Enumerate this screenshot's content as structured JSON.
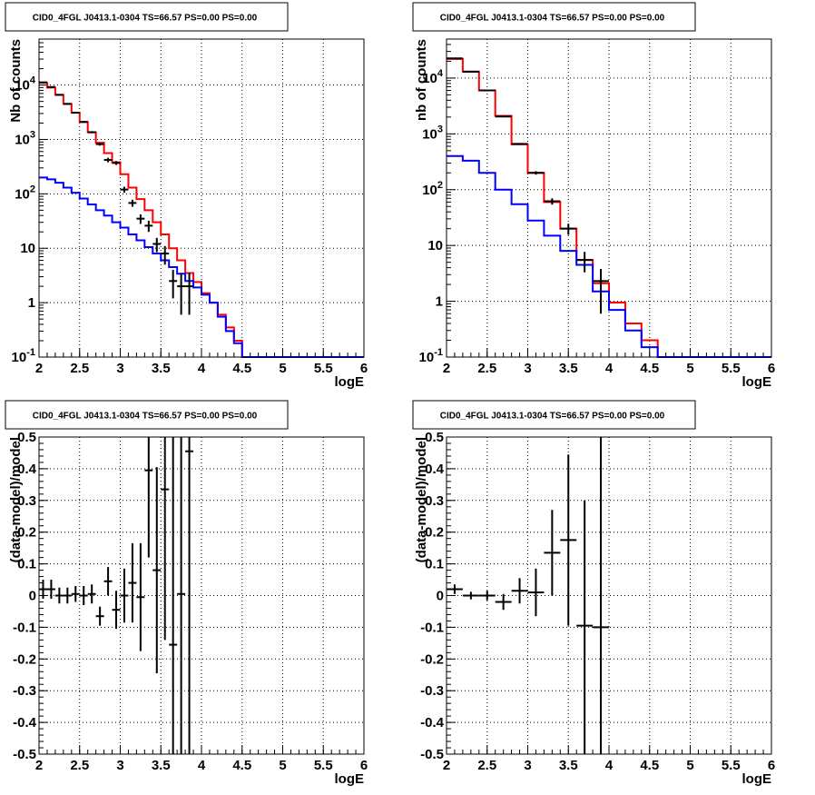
{
  "chart_data": [
    {
      "type": "line",
      "title": "CID0_4FGL J0413.1-0304 TS=66.57 PS=0.00 PS=0.00",
      "xlabel": "logE",
      "ylabel": "Nb of counts",
      "xlim": [
        2,
        6
      ],
      "ylim": [
        0.1,
        70000
      ],
      "yscale": "log",
      "grid": true,
      "xticks": [
        "2",
        "2.5",
        "3",
        "3.5",
        "4",
        "4.5",
        "5",
        "5.5",
        "6"
      ],
      "yticks": [
        {
          "value": 0.1,
          "label": "10^-1"
        },
        {
          "value": 1,
          "label": "1"
        },
        {
          "value": 10,
          "label": "10"
        },
        {
          "value": 100,
          "label": "10^2"
        },
        {
          "value": 1000,
          "label": "10^3"
        },
        {
          "value": 10000,
          "label": "10^4"
        }
      ],
      "bin_edges": [
        2.0,
        2.1,
        2.2,
        2.3,
        2.4,
        2.5,
        2.6,
        2.7,
        2.8,
        2.9,
        3.0,
        3.1,
        3.2,
        3.3,
        3.4,
        3.5,
        3.6,
        3.7,
        3.8,
        3.9,
        4.0,
        4.1,
        4.2,
        4.3,
        4.4,
        4.5,
        4.6,
        4.7,
        4.8,
        4.9,
        5.0,
        5.1,
        5.2,
        5.3,
        5.4,
        5.5,
        5.6,
        5.7,
        5.8,
        5.9,
        6.0
      ],
      "series": [
        {
          "color": "#ff0000",
          "values": [
            11000,
            9000,
            6600,
            4500,
            3100,
            2100,
            1350,
            870,
            560,
            380,
            230,
            130,
            80,
            50,
            30,
            18,
            10,
            6,
            3.5,
            2.4,
            1.5,
            1.0,
            0.6,
            0.35,
            0.2,
            0.1,
            0.1,
            0.1,
            0.1,
            0.1,
            0.1,
            0.1,
            0.1,
            0.1,
            0.1,
            0.1,
            0.1,
            0.1,
            0.1,
            0.1
          ]
        },
        {
          "color": "#0000ff",
          "values": [
            200,
            185,
            160,
            130,
            105,
            82,
            64,
            50,
            40,
            30,
            24,
            18,
            14,
            10.5,
            8,
            6,
            4.5,
            3.4,
            2.5,
            1.9,
            1.4,
            1.0,
            0.55,
            0.3,
            0.18,
            0.1,
            0.1,
            0.1,
            0.1,
            0.1,
            0.1,
            0.1,
            0.1,
            0.1,
            0.1,
            0.1,
            0.1,
            0.1,
            0.1,
            0.1
          ]
        }
      ],
      "points": [
        {
          "x": 2.05,
          "y": 11200,
          "ylo": 11000,
          "yhi": 11400
        },
        {
          "x": 2.15,
          "y": 9200,
          "ylo": 9000,
          "yhi": 9400
        },
        {
          "x": 2.25,
          "y": 6600,
          "ylo": 6450,
          "yhi": 6750
        },
        {
          "x": 2.35,
          "y": 4500,
          "ylo": 4380,
          "yhi": 4620
        },
        {
          "x": 2.45,
          "y": 3100,
          "ylo": 3000,
          "yhi": 3200
        },
        {
          "x": 2.55,
          "y": 2100,
          "ylo": 2020,
          "yhi": 2180
        },
        {
          "x": 2.65,
          "y": 1360,
          "ylo": 1300,
          "yhi": 1420
        },
        {
          "x": 2.75,
          "y": 820,
          "ylo": 770,
          "yhi": 870
        },
        {
          "x": 2.85,
          "y": 420,
          "ylo": 380,
          "yhi": 460
        },
        {
          "x": 2.95,
          "y": 370,
          "ylo": 340,
          "yhi": 400
        },
        {
          "x": 3.05,
          "y": 120,
          "ylo": 105,
          "yhi": 135
        },
        {
          "x": 3.15,
          "y": 68,
          "ylo": 58,
          "yhi": 78
        },
        {
          "x": 3.25,
          "y": 35,
          "ylo": 28,
          "yhi": 42
        },
        {
          "x": 3.35,
          "y": 26,
          "ylo": 20,
          "yhi": 32
        },
        {
          "x": 3.45,
          "y": 12,
          "ylo": 8.5,
          "yhi": 15.5
        },
        {
          "x": 3.55,
          "y": 8,
          "ylo": 5,
          "yhi": 11
        },
        {
          "x": 3.65,
          "y": 2.5,
          "ylo": 1.2,
          "yhi": 4
        },
        {
          "x": 3.75,
          "y": 2,
          "ylo": 0.6,
          "yhi": 3.5
        },
        {
          "x": 3.85,
          "y": 2,
          "ylo": 0.6,
          "yhi": 3.5
        }
      ]
    },
    {
      "type": "line",
      "title": "CID0_4FGL J0413.1-0304 TS=66.57 PS=0.00 PS=0.00",
      "xlabel": "logE",
      "ylabel": "nb of counts",
      "xlim": [
        2,
        6
      ],
      "ylim": [
        0.1,
        50000
      ],
      "yscale": "log",
      "grid": true,
      "xticks": [
        "2",
        "2.5",
        "3",
        "3.5",
        "4",
        "4.5",
        "5",
        "5.5",
        "6"
      ],
      "yticks": [
        {
          "value": 0.1,
          "label": "10^-1"
        },
        {
          "value": 1,
          "label": "1"
        },
        {
          "value": 10,
          "label": "10"
        },
        {
          "value": 100,
          "label": "10^2"
        },
        {
          "value": 1000,
          "label": "10^3"
        },
        {
          "value": 10000,
          "label": "10^4"
        }
      ],
      "bin_edges": [
        2.0,
        2.2,
        2.4,
        2.6,
        2.8,
        3.0,
        3.2,
        3.4,
        3.6,
        3.8,
        4.0,
        4.2,
        4.4,
        4.6,
        4.8,
        5.0,
        5.2,
        5.4,
        5.6,
        5.8,
        6.0
      ],
      "series": [
        {
          "color": "#ff0000",
          "values": [
            22000,
            13000,
            6000,
            2100,
            650,
            200,
            60,
            20,
            5.5,
            2.1,
            0.95,
            0.4,
            0.2,
            0.1,
            0.1,
            0.1,
            0.1,
            0.1,
            0.1,
            0.1
          ]
        },
        {
          "color": "#0000ff",
          "values": [
            400,
            330,
            200,
            100,
            55,
            28,
            15,
            8,
            4.5,
            1.5,
            0.7,
            0.3,
            0.15,
            0.1,
            0.1,
            0.1,
            0.1,
            0.1,
            0.1,
            0.1
          ]
        }
      ],
      "points": [
        {
          "x": 2.1,
          "y": 22500,
          "ylo": 22300,
          "yhi": 22700
        },
        {
          "x": 2.3,
          "y": 13000,
          "ylo": 12850,
          "yhi": 13150
        },
        {
          "x": 2.5,
          "y": 6000,
          "ylo": 5900,
          "yhi": 6100
        },
        {
          "x": 2.7,
          "y": 2050,
          "ylo": 2000,
          "yhi": 2100
        },
        {
          "x": 2.9,
          "y": 660,
          "ylo": 635,
          "yhi": 685
        },
        {
          "x": 3.1,
          "y": 200,
          "ylo": 186,
          "yhi": 214
        },
        {
          "x": 3.3,
          "y": 62,
          "ylo": 54,
          "yhi": 70
        },
        {
          "x": 3.5,
          "y": 20,
          "ylo": 15.5,
          "yhi": 24.5
        },
        {
          "x": 3.7,
          "y": 5.5,
          "ylo": 3.3,
          "yhi": 7.7
        },
        {
          "x": 3.9,
          "y": 2.3,
          "ylo": 0.6,
          "yhi": 3.8
        }
      ]
    },
    {
      "type": "scatter",
      "title": "CID0_4FGL J0413.1-0304 TS=66.57 PS=0.00 PS=0.00",
      "xlabel": "logE",
      "ylabel": "(data-model)/model",
      "xlim": [
        2,
        6
      ],
      "ylim": [
        -0.5,
        0.5
      ],
      "grid": true,
      "xticks": [
        "2",
        "2.5",
        "3",
        "3.5",
        "4",
        "4.5",
        "5",
        "5.5",
        "6"
      ],
      "yticks": [
        "-0.5",
        "-0.4",
        "-0.3",
        "-0.2",
        "-0.1",
        "0",
        "0.1",
        "0.2",
        "0.3",
        "0.4",
        "0.5"
      ],
      "points": [
        {
          "x": 2.05,
          "y": 0.02,
          "ylo": -0.01,
          "yhi": 0.05
        },
        {
          "x": 2.15,
          "y": 0.02,
          "ylo": -0.01,
          "yhi": 0.05
        },
        {
          "x": 2.25,
          "y": 0.0,
          "ylo": -0.025,
          "yhi": 0.025
        },
        {
          "x": 2.35,
          "y": 0.0,
          "ylo": -0.025,
          "yhi": 0.025
        },
        {
          "x": 2.45,
          "y": 0.005,
          "ylo": -0.02,
          "yhi": 0.03
        },
        {
          "x": 2.55,
          "y": 0.0,
          "ylo": -0.03,
          "yhi": 0.03
        },
        {
          "x": 2.65,
          "y": 0.005,
          "ylo": -0.025,
          "yhi": 0.035
        },
        {
          "x": 2.75,
          "y": -0.065,
          "ylo": -0.095,
          "yhi": -0.035
        },
        {
          "x": 2.85,
          "y": 0.045,
          "ylo": 0.0,
          "yhi": 0.09
        },
        {
          "x": 2.95,
          "y": -0.045,
          "ylo": -0.105,
          "yhi": 0.015
        },
        {
          "x": 3.05,
          "y": 0.0,
          "ylo": -0.085,
          "yhi": 0.085
        },
        {
          "x": 3.15,
          "y": 0.04,
          "ylo": -0.085,
          "yhi": 0.165
        },
        {
          "x": 3.25,
          "y": -0.005,
          "ylo": -0.175,
          "yhi": 0.165
        },
        {
          "x": 3.35,
          "y": 0.395,
          "ylo": 0.12,
          "yhi": 0.5
        },
        {
          "x": 3.45,
          "y": 0.08,
          "ylo": -0.245,
          "yhi": 0.405
        },
        {
          "x": 3.55,
          "y": 0.335,
          "ylo": -0.14,
          "yhi": 0.5
        },
        {
          "x": 3.65,
          "y": -0.155,
          "ylo": -0.5,
          "yhi": 0.5
        },
        {
          "x": 3.75,
          "y": 0.005,
          "ylo": -0.5,
          "yhi": 0.5
        },
        {
          "x": 3.85,
          "y": 0.455,
          "ylo": -0.5,
          "yhi": 0.5
        }
      ]
    },
    {
      "type": "scatter",
      "title": "CID0_4FGL J0413.1-0304 TS=66.57 PS=0.00 PS=0.00",
      "xlabel": "logE",
      "ylabel": "(data-model)/model",
      "xlim": [
        2,
        6
      ],
      "ylim": [
        -0.5,
        0.5
      ],
      "grid": true,
      "xticks": [
        "2",
        "2.5",
        "3",
        "3.5",
        "4",
        "4.5",
        "5",
        "5.5",
        "6"
      ],
      "yticks": [
        "-0.5",
        "-0.4",
        "-0.3",
        "-0.2",
        "-0.1",
        "0",
        "0.1",
        "0.2",
        "0.3",
        "0.4",
        "0.5"
      ],
      "points": [
        {
          "x": 2.1,
          "y": 0.02,
          "ylo": 0.005,
          "yhi": 0.035
        },
        {
          "x": 2.3,
          "y": 0.0,
          "ylo": -0.012,
          "yhi": 0.012
        },
        {
          "x": 2.5,
          "y": 0.0,
          "ylo": -0.015,
          "yhi": 0.015
        },
        {
          "x": 2.7,
          "y": -0.02,
          "ylo": -0.045,
          "yhi": 0.005
        },
        {
          "x": 2.9,
          "y": 0.015,
          "ylo": -0.025,
          "yhi": 0.055
        },
        {
          "x": 3.1,
          "y": 0.01,
          "ylo": -0.065,
          "yhi": 0.085
        },
        {
          "x": 3.3,
          "y": 0.135,
          "ylo": 0.0,
          "yhi": 0.27
        },
        {
          "x": 3.5,
          "y": 0.175,
          "ylo": -0.095,
          "yhi": 0.445
        },
        {
          "x": 3.7,
          "y": -0.095,
          "ylo": -0.5,
          "yhi": 0.3
        },
        {
          "x": 3.9,
          "y": -0.1,
          "ylo": -0.5,
          "yhi": 0.5
        }
      ]
    }
  ]
}
